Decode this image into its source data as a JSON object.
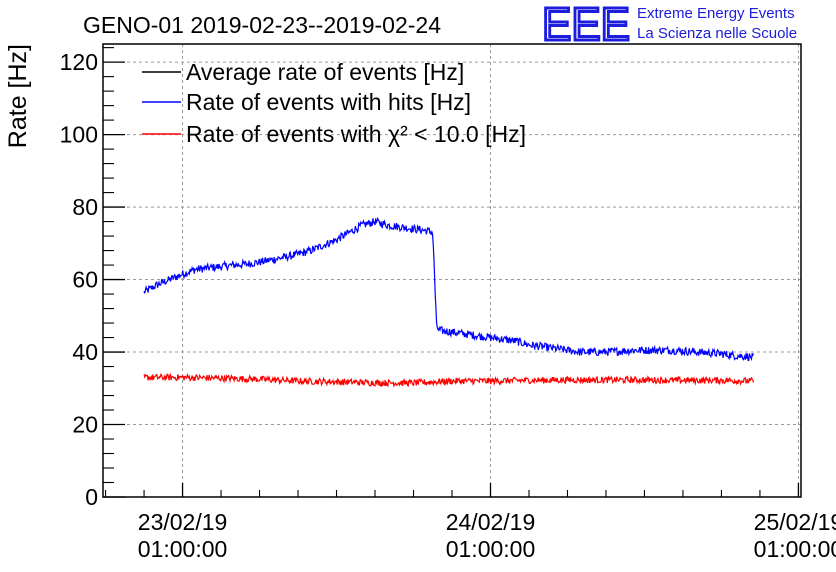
{
  "chart_data": {
    "type": "line",
    "title": "GENO-01 2019-02-23--2019-02-24",
    "ylabel": "Rate [Hz]",
    "xlabel": "",
    "x_unit": "hours since 23/02/19 01:00:00",
    "xlim": [
      -6.2,
      48.2
    ],
    "ylim": [
      0,
      125
    ],
    "yticks": [
      0,
      20,
      40,
      60,
      80,
      100,
      120
    ],
    "xticks": [
      {
        "value": 0,
        "date": "23/02/19",
        "time": "01:00:00"
      },
      {
        "value": 24,
        "date": "24/02/19",
        "time": "01:00:00"
      },
      {
        "value": 48,
        "date": "25/02/19",
        "time": "01:00:00"
      }
    ],
    "grid": true,
    "legend_position": "top-left",
    "series": [
      {
        "name": "Average rate of events [Hz]",
        "color": "#000000",
        "points": []
      },
      {
        "name": "Rate of events with hits [Hz]",
        "color": "#0000ff",
        "points": [
          [
            -3,
            56.5
          ],
          [
            -2,
            58.5
          ],
          [
            -1,
            60
          ],
          [
            0,
            61.5
          ],
          [
            1,
            62.8
          ],
          [
            2,
            63.2
          ],
          [
            3,
            63.6
          ],
          [
            4,
            64
          ],
          [
            5,
            64.3
          ],
          [
            6,
            64.8
          ],
          [
            7,
            65.5
          ],
          [
            8,
            66.2
          ],
          [
            9,
            67
          ],
          [
            10,
            68
          ],
          [
            11,
            69.5
          ],
          [
            12,
            71
          ],
          [
            13,
            73
          ],
          [
            14,
            75
          ],
          [
            15,
            76
          ],
          [
            16,
            75
          ],
          [
            17,
            74.5
          ],
          [
            18,
            74
          ],
          [
            19,
            73.5
          ],
          [
            19.5,
            73
          ],
          [
            19.8,
            47
          ],
          [
            20,
            46
          ],
          [
            21,
            45.5
          ],
          [
            22,
            45
          ],
          [
            23,
            44.5
          ],
          [
            24,
            44
          ],
          [
            25,
            43.5
          ],
          [
            26,
            43
          ],
          [
            27,
            42
          ],
          [
            28,
            41.5
          ],
          [
            29,
            41
          ],
          [
            30,
            40.5
          ],
          [
            31,
            40
          ],
          [
            32,
            40
          ],
          [
            33,
            40
          ],
          [
            34,
            40.2
          ],
          [
            35,
            40.5
          ],
          [
            36,
            40.5
          ],
          [
            37,
            40.5
          ],
          [
            38,
            40.5
          ],
          [
            39,
            40.3
          ],
          [
            40,
            40
          ],
          [
            41,
            39.8
          ],
          [
            42,
            39.5
          ],
          [
            43,
            39
          ],
          [
            44,
            38.8
          ],
          [
            44.5,
            38.5
          ]
        ]
      },
      {
        "name": "Rate of events with χ² < 10.0 [Hz]",
        "color": "#ff0000",
        "points": [
          [
            -3,
            33
          ],
          [
            0,
            33
          ],
          [
            3,
            32.8
          ],
          [
            6,
            32.5
          ],
          [
            9,
            32
          ],
          [
            12,
            31.8
          ],
          [
            15,
            31.5
          ],
          [
            18,
            31.5
          ],
          [
            21,
            32
          ],
          [
            24,
            32
          ],
          [
            27,
            32.2
          ],
          [
            30,
            32.3
          ],
          [
            33,
            32.3
          ],
          [
            36,
            32.3
          ],
          [
            39,
            32.2
          ],
          [
            42,
            32.2
          ],
          [
            44.5,
            32
          ]
        ]
      }
    ]
  },
  "logo": {
    "mark": "EEE",
    "line1": "Extreme Energy Events",
    "line2": "La Scienza nelle Scuole",
    "color": "#1c1cdc"
  }
}
